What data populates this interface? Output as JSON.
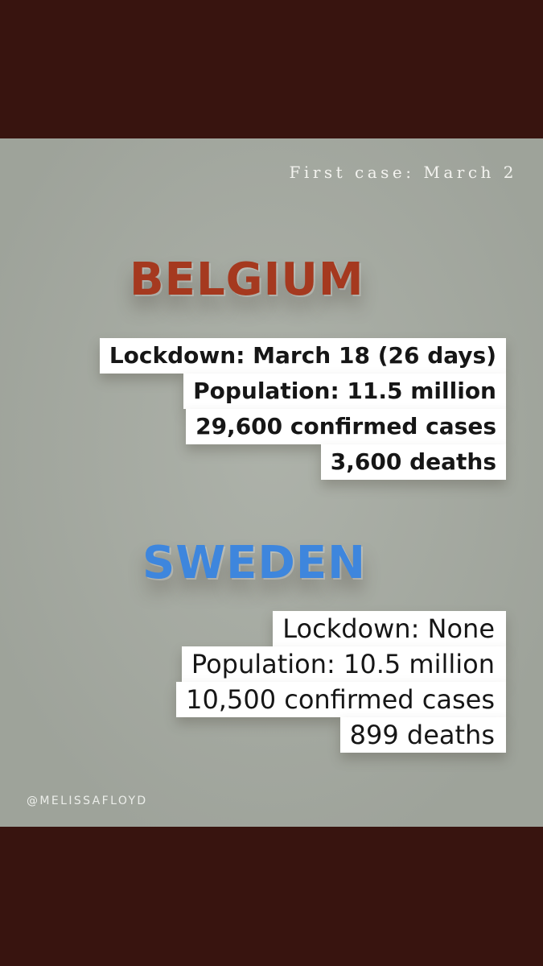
{
  "first_case": "First case: March 2",
  "belgium": {
    "title": "BELGIUM",
    "lines": [
      "Lockdown: March 18 (26 days)",
      "Population: 11.5 million",
      "29,600 confirmed cases",
      "3,600 deaths"
    ]
  },
  "sweden": {
    "title": "SWEDEN",
    "lines": [
      "Lockdown: None",
      "Population: 10.5 million",
      "10,500 confirmed cases",
      "899 deaths"
    ]
  },
  "handle": "@MELISSAFLOYD",
  "colors": {
    "frame": "#38140f",
    "panel": "#a8ada4",
    "belgium_title": "#a5391f",
    "sweden_title": "#3e86dd"
  }
}
